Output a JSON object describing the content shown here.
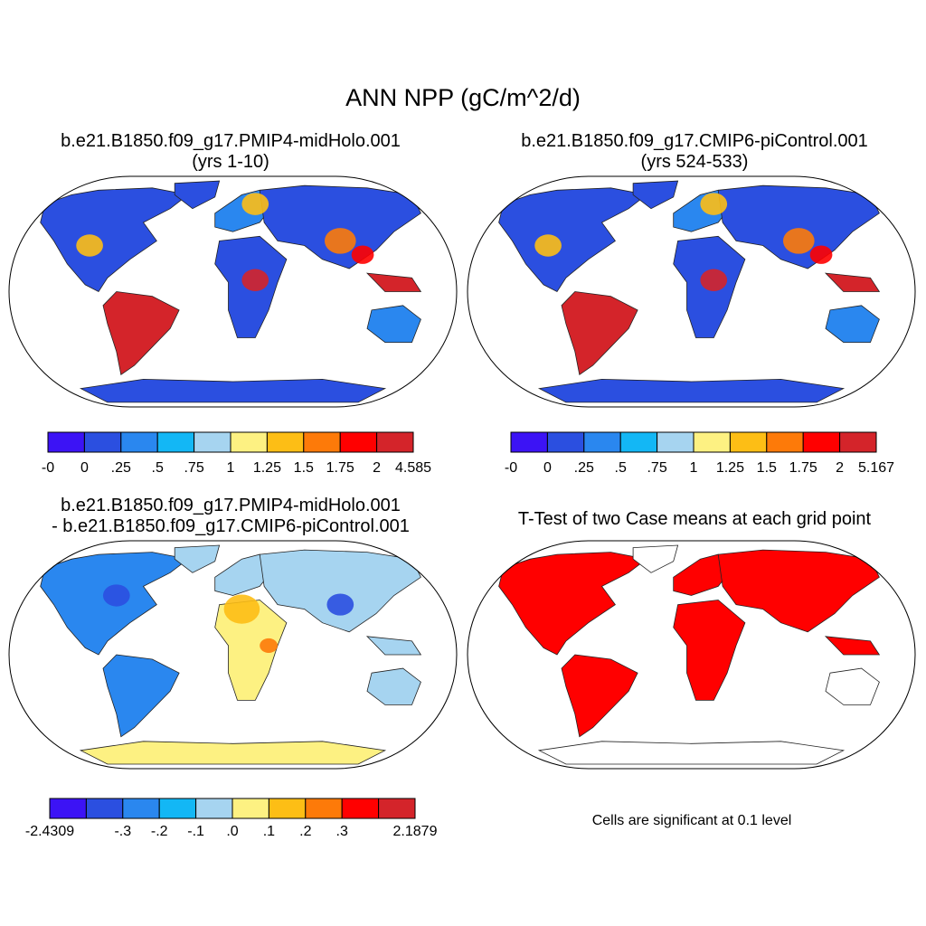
{
  "figure": {
    "title": "ANN NPP (gC/m^2/d)"
  },
  "panels": [
    {
      "id": "case1",
      "title_line1": "b.e21.B1850.f09_g17.PMIP4-midHolo.001",
      "title_line2": "(yrs 1-10)",
      "map_type": "npp",
      "colorbar": {
        "colors": [
          "#3c13f5",
          "#2b4fe0",
          "#2a87ef",
          "#13b7f5",
          "#a6d4f0",
          "#fdf182",
          "#fdbe15",
          "#fd7a09",
          "#ff0000",
          "#d4242a"
        ],
        "tick_labels": [
          "-0",
          "0",
          ".25",
          ".5",
          ".75",
          "1",
          "1.25",
          "1.5",
          "1.75",
          "2",
          "4.585"
        ]
      }
    },
    {
      "id": "case2",
      "title_line1": "b.e21.B1850.f09_g17.CMIP6-piControl.001",
      "title_line2": "(yrs 524-533)",
      "map_type": "npp",
      "colorbar": {
        "colors": [
          "#3c13f5",
          "#2b4fe0",
          "#2a87ef",
          "#13b7f5",
          "#a6d4f0",
          "#fdf182",
          "#fdbe15",
          "#fd7a09",
          "#ff0000",
          "#d4242a"
        ],
        "tick_labels": [
          "-0",
          "0",
          ".25",
          ".5",
          ".75",
          "1",
          "1.25",
          "1.5",
          "1.75",
          "2",
          "5.167"
        ]
      }
    },
    {
      "id": "difference",
      "title_line1": "b.e21.B1850.f09_g17.PMIP4-midHolo.001",
      "title_line2": "- b.e21.B1850.f09_g17.CMIP6-piControl.001",
      "map_type": "diff",
      "colorbar": {
        "colors": [
          "#3c13f5",
          "#2b4fe0",
          "#2a87ef",
          "#13b7f5",
          "#a6d4f0",
          "#fdf182",
          "#fdbe15",
          "#fd7a09",
          "#ff0000",
          "#d4242a"
        ],
        "tick_labels": [
          "-2.4309",
          "",
          "-.3",
          "-.2",
          "-.1",
          ".0",
          ".1",
          ".2",
          ".3",
          "",
          "2.1879"
        ]
      }
    },
    {
      "id": "ttest",
      "title_line1": "T-Test of two Case means at each grid point",
      "title_line2": "",
      "map_type": "ttest",
      "note": "Cells are significant at 0.1 level",
      "significant_color": "#ff0000"
    }
  ]
}
